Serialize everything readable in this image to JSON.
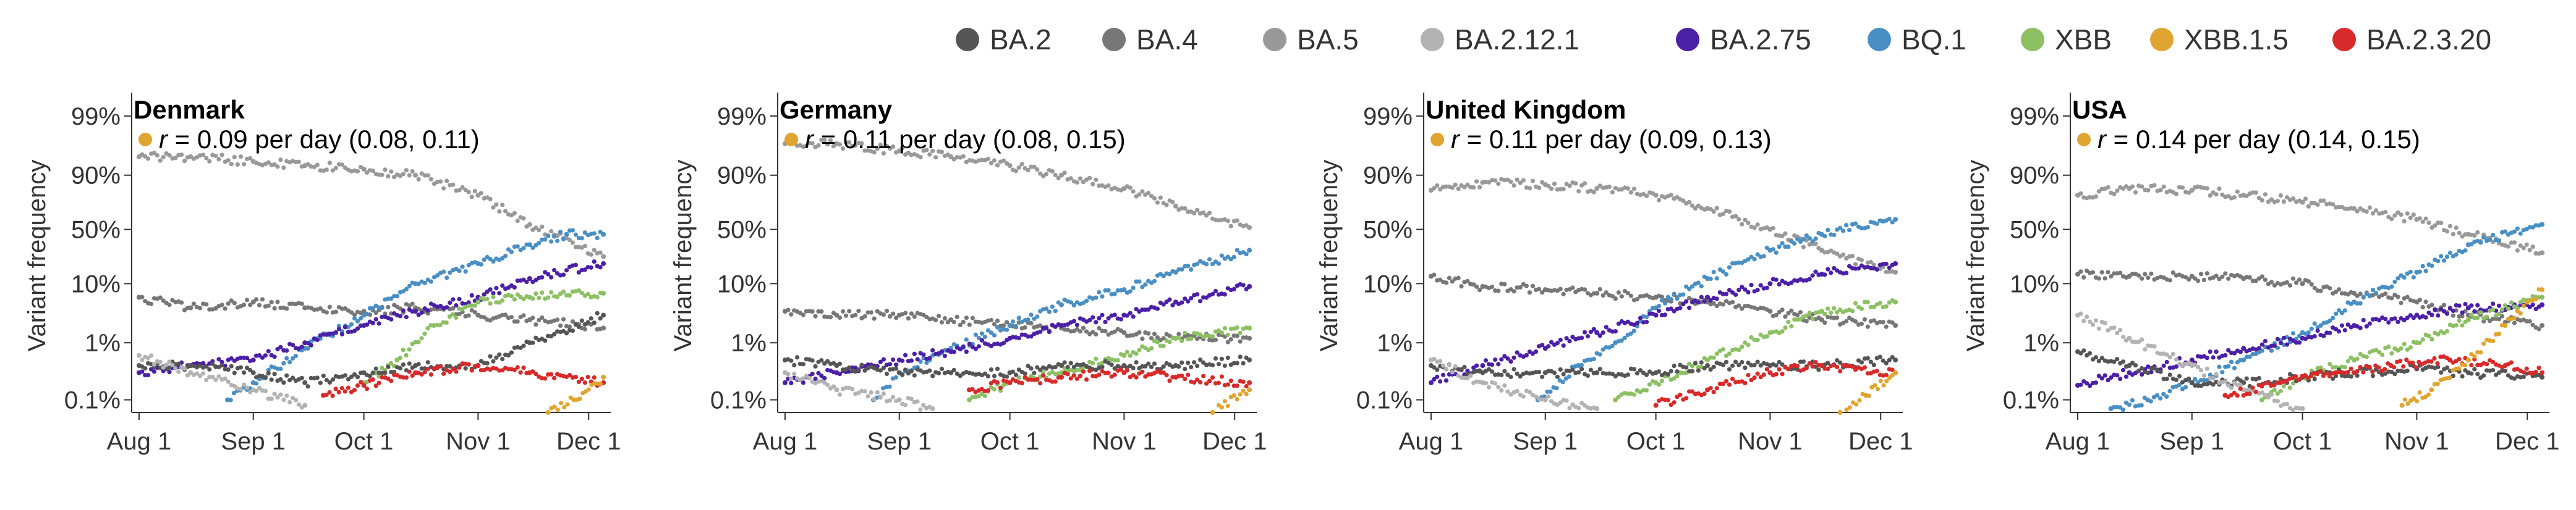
{
  "legend": [
    {
      "name": "BA.2",
      "color": "#555555"
    },
    {
      "name": "BA.4",
      "color": "#777777"
    },
    {
      "name": "BA.5",
      "color": "#999999"
    },
    {
      "name": "BA.2.12.1",
      "color": "#b3b3b3"
    },
    {
      "name": "BA.2.75",
      "color": "#4b1fa6"
    },
    {
      "name": "BQ.1",
      "color": "#4a8fc4"
    },
    {
      "name": "XBB",
      "color": "#8cc063"
    },
    {
      "name": "XBB.1.5",
      "color": "#e0a530"
    },
    {
      "name": "BA.2.3.20",
      "color": "#d82a2a"
    }
  ],
  "chart_data": [
    {
      "type": "scatter",
      "title": "Denmark",
      "annotation": {
        "symbol": "r",
        "text": " = 0.09 per day (0.08, 0.11)",
        "color": "#e0a530"
      },
      "ylabel": "Variant frequency",
      "y_scale": "logit",
      "yticks": [
        "99%",
        "90%",
        "50%",
        "10%",
        "1%",
        "0.1%"
      ],
      "ytick_values": [
        0.99,
        0.9,
        0.5,
        0.1,
        0.01,
        0.001
      ],
      "xticks": [
        "Aug 1",
        "Sep 1",
        "Oct 1",
        "Nov 1",
        "Dec 1"
      ],
      "xlim": [
        "2022-07-30",
        "2022-12-07"
      ],
      "ylim": [
        0.0006,
        0.995
      ],
      "series": [
        {
          "name": "BA.5",
          "x": [
            "2022-08-01",
            "2022-08-15",
            "2022-09-01",
            "2022-09-15",
            "2022-10-01",
            "2022-10-15",
            "2022-11-01",
            "2022-11-15",
            "2022-12-05"
          ],
          "y": [
            0.95,
            0.95,
            0.94,
            0.93,
            0.92,
            0.9,
            0.8,
            0.55,
            0.25
          ]
        },
        {
          "name": "BA.4",
          "x": [
            "2022-08-01",
            "2022-08-15",
            "2022-09-01",
            "2022-09-15",
            "2022-10-01",
            "2022-10-15",
            "2022-11-01",
            "2022-11-15",
            "2022-12-05"
          ],
          "y": [
            0.06,
            0.04,
            0.05,
            0.04,
            0.035,
            0.04,
            0.03,
            0.025,
            0.018
          ]
        },
        {
          "name": "BQ.1",
          "x": [
            "2022-08-25",
            "2022-09-01",
            "2022-09-15",
            "2022-10-01",
            "2022-10-15",
            "2022-11-01",
            "2022-11-15",
            "2022-11-25",
            "2022-12-05"
          ],
          "y": [
            0.001,
            0.002,
            0.008,
            0.03,
            0.1,
            0.2,
            0.35,
            0.45,
            0.45
          ]
        },
        {
          "name": "BA.2.75",
          "x": [
            "2022-08-01",
            "2022-08-15",
            "2022-09-01",
            "2022-09-15",
            "2022-10-01",
            "2022-10-15",
            "2022-11-01",
            "2022-11-15",
            "2022-12-05"
          ],
          "y": [
            0.003,
            0.004,
            0.005,
            0.01,
            0.02,
            0.035,
            0.06,
            0.12,
            0.2
          ]
        },
        {
          "name": "XBB",
          "x": [
            "2022-10-01",
            "2022-10-10",
            "2022-10-20",
            "2022-11-01",
            "2022-11-15",
            "2022-12-05"
          ],
          "y": [
            0.002,
            0.005,
            0.02,
            0.05,
            0.06,
            0.07
          ]
        },
        {
          "name": "BA.2",
          "x": [
            "2022-08-01",
            "2022-08-15",
            "2022-09-01",
            "2022-09-15",
            "2022-10-01",
            "2022-10-15",
            "2022-11-01",
            "2022-11-15",
            "2022-12-05"
          ],
          "y": [
            0.004,
            0.004,
            0.003,
            0.002,
            0.003,
            0.004,
            0.004,
            0.01,
            0.03
          ]
        },
        {
          "name": "BA.2.12.1",
          "x": [
            "2022-08-01",
            "2022-08-15",
            "2022-09-01",
            "2022-09-15"
          ],
          "y": [
            0.006,
            0.003,
            0.0015,
            0.0008
          ]
        },
        {
          "name": "BA.2.3.20",
          "x": [
            "2022-09-20",
            "2022-10-01",
            "2022-10-15",
            "2022-11-01",
            "2022-11-15",
            "2022-12-05"
          ],
          "y": [
            0.0012,
            0.0018,
            0.003,
            0.004,
            0.003,
            0.002
          ]
        },
        {
          "name": "XBB.1.5",
          "x": [
            "2022-11-20",
            "2022-11-27",
            "2022-12-05"
          ],
          "y": [
            0.0006,
            0.001,
            0.0025
          ]
        }
      ]
    },
    {
      "type": "scatter",
      "title": "Germany",
      "annotation": {
        "symbol": "r",
        "text": " = 0.11 per day (0.08, 0.15)",
        "color": "#e0a530"
      },
      "ylabel": "Variant frequency",
      "y_scale": "logit",
      "yticks": [
        "99%",
        "90%",
        "50%",
        "10%",
        "1%",
        "0.1%"
      ],
      "ytick_values": [
        0.99,
        0.9,
        0.5,
        0.1,
        0.01,
        0.001
      ],
      "xticks": [
        "Aug 1",
        "Sep 1",
        "Oct 1",
        "Nov 1",
        "Dec 1"
      ],
      "xlim": [
        "2022-07-30",
        "2022-12-07"
      ],
      "ylim": [
        0.0006,
        0.995
      ],
      "series": [
        {
          "name": "BA.5",
          "x": [
            "2022-08-01",
            "2022-08-15",
            "2022-09-01",
            "2022-09-15",
            "2022-10-01",
            "2022-10-15",
            "2022-11-01",
            "2022-11-15",
            "2022-12-05"
          ],
          "y": [
            0.97,
            0.97,
            0.96,
            0.95,
            0.93,
            0.9,
            0.84,
            0.72,
            0.52
          ]
        },
        {
          "name": "BA.4",
          "x": [
            "2022-08-01",
            "2022-08-15",
            "2022-09-01",
            "2022-09-15",
            "2022-10-01",
            "2022-10-15",
            "2022-11-01",
            "2022-11-15",
            "2022-12-05"
          ],
          "y": [
            0.035,
            0.03,
            0.03,
            0.025,
            0.02,
            0.018,
            0.015,
            0.012,
            0.012
          ]
        },
        {
          "name": "BQ.1",
          "x": [
            "2022-08-25",
            "2022-09-01",
            "2022-09-15",
            "2022-10-01",
            "2022-10-15",
            "2022-11-01",
            "2022-11-15",
            "2022-12-05"
          ],
          "y": [
            0.001,
            0.003,
            0.008,
            0.02,
            0.045,
            0.08,
            0.15,
            0.3
          ]
        },
        {
          "name": "BA.2.75",
          "x": [
            "2022-08-01",
            "2022-08-15",
            "2022-09-01",
            "2022-09-15",
            "2022-10-01",
            "2022-10-15",
            "2022-11-01",
            "2022-11-15",
            "2022-12-05"
          ],
          "y": [
            0.002,
            0.003,
            0.005,
            0.007,
            0.012,
            0.02,
            0.03,
            0.05,
            0.09
          ]
        },
        {
          "name": "XBB",
          "x": [
            "2022-09-20",
            "2022-10-01",
            "2022-10-15",
            "2022-11-01",
            "2022-11-15",
            "2022-12-05"
          ],
          "y": [
            0.001,
            0.002,
            0.003,
            0.006,
            0.012,
            0.018
          ]
        },
        {
          "name": "BA.2",
          "x": [
            "2022-08-01",
            "2022-08-15",
            "2022-09-01",
            "2022-09-15",
            "2022-10-01",
            "2022-10-15",
            "2022-11-01",
            "2022-11-15",
            "2022-12-05"
          ],
          "y": [
            0.005,
            0.004,
            0.003,
            0.003,
            0.003,
            0.004,
            0.004,
            0.004,
            0.005
          ]
        },
        {
          "name": "BA.2.12.1",
          "x": [
            "2022-08-01",
            "2022-08-15",
            "2022-09-01",
            "2022-09-10"
          ],
          "y": [
            0.003,
            0.0015,
            0.001,
            0.0007
          ]
        },
        {
          "name": "BA.2.3.20",
          "x": [
            "2022-09-20",
            "2022-10-01",
            "2022-10-15",
            "2022-11-01",
            "2022-11-15",
            "2022-12-05"
          ],
          "y": [
            0.0015,
            0.002,
            0.0025,
            0.003,
            0.0025,
            0.002
          ]
        },
        {
          "name": "XBB.1.5",
          "x": [
            "2022-11-25",
            "2022-12-05"
          ],
          "y": [
            0.0006,
            0.0015
          ]
        }
      ]
    },
    {
      "type": "scatter",
      "title": "United Kingdom",
      "annotation": {
        "symbol": "r",
        "text": " = 0.11 per day (0.09, 0.13)",
        "color": "#e0a530"
      },
      "ylabel": "Variant frequency",
      "y_scale": "logit",
      "yticks": [
        "99%",
        "90%",
        "50%",
        "10%",
        "1%",
        "0.1%"
      ],
      "ytick_values": [
        0.99,
        0.9,
        0.5,
        0.1,
        0.01,
        0.001
      ],
      "xticks": [
        "Aug 1",
        "Sep 1",
        "Oct 1",
        "Nov 1",
        "Dec 1"
      ],
      "xlim": [
        "2022-07-30",
        "2022-12-07"
      ],
      "ylim": [
        0.0006,
        0.995
      ],
      "series": [
        {
          "name": "BA.5",
          "x": [
            "2022-08-01",
            "2022-08-15",
            "2022-09-01",
            "2022-09-15",
            "2022-10-01",
            "2022-10-15",
            "2022-11-01",
            "2022-11-15",
            "2022-12-05"
          ],
          "y": [
            0.83,
            0.87,
            0.86,
            0.84,
            0.8,
            0.7,
            0.5,
            0.3,
            0.15
          ]
        },
        {
          "name": "BA.4",
          "x": [
            "2022-08-01",
            "2022-08-15",
            "2022-09-01",
            "2022-09-15",
            "2022-10-01",
            "2022-10-15",
            "2022-11-01",
            "2022-11-15",
            "2022-12-05"
          ],
          "y": [
            0.13,
            0.09,
            0.08,
            0.07,
            0.06,
            0.05,
            0.035,
            0.025,
            0.02
          ]
        },
        {
          "name": "BQ.1",
          "x": [
            "2022-08-30",
            "2022-09-10",
            "2022-09-20",
            "2022-10-01",
            "2022-10-15",
            "2022-11-01",
            "2022-11-15",
            "2022-12-05"
          ],
          "y": [
            0.001,
            0.004,
            0.01,
            0.04,
            0.12,
            0.3,
            0.45,
            0.6
          ]
        },
        {
          "name": "BA.2.75",
          "x": [
            "2022-08-01",
            "2022-08-15",
            "2022-09-01",
            "2022-09-15",
            "2022-10-01",
            "2022-10-15",
            "2022-11-01",
            "2022-11-15",
            "2022-12-05"
          ],
          "y": [
            0.002,
            0.004,
            0.008,
            0.015,
            0.03,
            0.06,
            0.1,
            0.14,
            0.2
          ]
        },
        {
          "name": "XBB",
          "x": [
            "2022-09-20",
            "2022-10-01",
            "2022-10-15",
            "2022-11-01",
            "2022-11-15",
            "2022-12-05"
          ],
          "y": [
            0.001,
            0.002,
            0.005,
            0.015,
            0.035,
            0.05
          ]
        },
        {
          "name": "BA.2",
          "x": [
            "2022-08-01",
            "2022-08-15",
            "2022-09-01",
            "2022-09-15",
            "2022-10-01",
            "2022-10-15",
            "2022-11-01",
            "2022-11-15",
            "2022-12-05"
          ],
          "y": [
            0.004,
            0.003,
            0.003,
            0.003,
            0.003,
            0.004,
            0.004,
            0.004,
            0.005
          ]
        },
        {
          "name": "BA.2.12.1",
          "x": [
            "2022-08-01",
            "2022-08-15",
            "2022-09-01",
            "2022-09-15"
          ],
          "y": [
            0.005,
            0.002,
            0.001,
            0.0007
          ]
        },
        {
          "name": "BA.2.3.20",
          "x": [
            "2022-10-01",
            "2022-10-15",
            "2022-11-01",
            "2022-11-15",
            "2022-12-05"
          ],
          "y": [
            0.0008,
            0.0015,
            0.003,
            0.004,
            0.003
          ]
        },
        {
          "name": "XBB.1.5",
          "x": [
            "2022-11-20",
            "2022-11-27",
            "2022-12-05"
          ],
          "y": [
            0.0006,
            0.0012,
            0.003
          ]
        }
      ]
    },
    {
      "type": "scatter",
      "title": "USA",
      "annotation": {
        "symbol": "r",
        "text": " = 0.14 per day (0.14, 0.15)",
        "color": "#e0a530"
      },
      "ylabel": "Variant frequency",
      "y_scale": "logit",
      "yticks": [
        "99%",
        "90%",
        "50%",
        "10%",
        "1%",
        "0.1%"
      ],
      "ytick_values": [
        0.99,
        0.9,
        0.5,
        0.1,
        0.01,
        0.001
      ],
      "xticks": [
        "Aug 1",
        "Sep 1",
        "Oct 1",
        "Nov 1",
        "Dec 1"
      ],
      "xlim": [
        "2022-07-30",
        "2022-12-07"
      ],
      "ylim": [
        0.0006,
        0.995
      ],
      "series": [
        {
          "name": "BA.5",
          "x": [
            "2022-08-01",
            "2022-08-15",
            "2022-09-01",
            "2022-09-15",
            "2022-10-01",
            "2022-10-15",
            "2022-11-01",
            "2022-11-15",
            "2022-12-05"
          ],
          "y": [
            0.8,
            0.84,
            0.83,
            0.8,
            0.75,
            0.7,
            0.6,
            0.45,
            0.28
          ]
        },
        {
          "name": "BA.4",
          "x": [
            "2022-08-01",
            "2022-08-15",
            "2022-09-01",
            "2022-09-15",
            "2022-10-01",
            "2022-10-15",
            "2022-11-01",
            "2022-11-15",
            "2022-12-05"
          ],
          "y": [
            0.14,
            0.13,
            0.13,
            0.12,
            0.1,
            0.07,
            0.05,
            0.03,
            0.02
          ]
        },
        {
          "name": "BQ.1",
          "x": [
            "2022-08-10",
            "2022-08-20",
            "2022-09-01",
            "2022-09-15",
            "2022-10-01",
            "2022-10-15",
            "2022-11-01",
            "2022-11-15",
            "2022-12-05"
          ],
          "y": [
            0.0007,
            0.001,
            0.002,
            0.005,
            0.015,
            0.05,
            0.15,
            0.35,
            0.55
          ]
        },
        {
          "name": "BA.2.75",
          "x": [
            "2022-08-01",
            "2022-08-15",
            "2022-09-01",
            "2022-09-15",
            "2022-10-01",
            "2022-10-15",
            "2022-11-01",
            "2022-11-15",
            "2022-12-05"
          ],
          "y": [
            0.0018,
            0.003,
            0.005,
            0.008,
            0.012,
            0.02,
            0.03,
            0.04,
            0.045
          ]
        },
        {
          "name": "XBB",
          "x": [
            "2022-09-20",
            "2022-10-01",
            "2022-10-15",
            "2022-11-01",
            "2022-11-15",
            "2022-12-05"
          ],
          "y": [
            0.001,
            0.0025,
            0.005,
            0.01,
            0.025,
            0.06
          ]
        },
        {
          "name": "BA.2",
          "x": [
            "2022-08-01",
            "2022-08-15",
            "2022-09-01",
            "2022-09-15",
            "2022-10-01",
            "2022-10-15",
            "2022-11-01",
            "2022-11-15",
            "2022-12-05"
          ],
          "y": [
            0.007,
            0.004,
            0.002,
            0.002,
            0.0025,
            0.003,
            0.0035,
            0.003,
            0.0025
          ]
        },
        {
          "name": "BA.2.12.1",
          "x": [
            "2022-08-01",
            "2022-08-15",
            "2022-09-01",
            "2022-09-15",
            "2022-10-01"
          ],
          "y": [
            0.03,
            0.012,
            0.004,
            0.0015,
            0.0007
          ]
        },
        {
          "name": "BA.2.3.20",
          "x": [
            "2022-09-10",
            "2022-09-25",
            "2022-10-10",
            "2022-10-25",
            "2022-11-10",
            "2022-11-25",
            "2022-12-05"
          ],
          "y": [
            0.0012,
            0.002,
            0.003,
            0.004,
            0.005,
            0.004,
            0.003
          ]
        },
        {
          "name": "XBB.1.5",
          "x": [
            "2022-10-28",
            "2022-11-05",
            "2022-11-15",
            "2022-11-25",
            "2022-12-05"
          ],
          "y": [
            0.0008,
            0.0015,
            0.005,
            0.02,
            0.08
          ]
        }
      ]
    }
  ]
}
